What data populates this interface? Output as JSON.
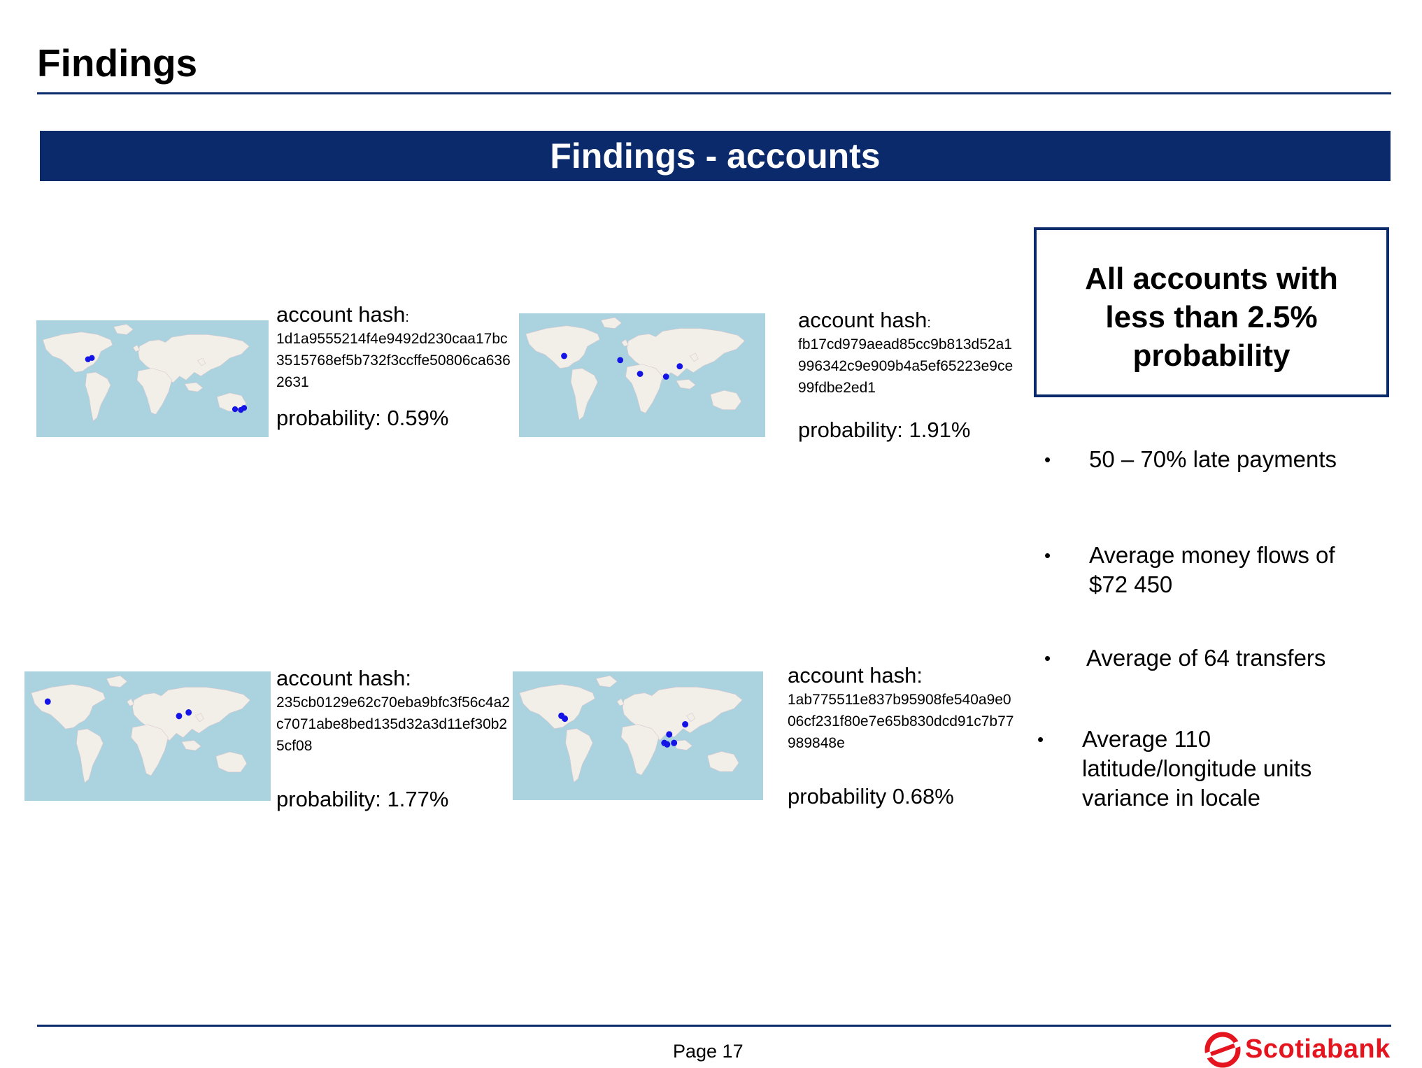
{
  "page": {
    "title": "Findings",
    "banner": "Findings - accounts",
    "page_number": "Page 17",
    "brand": "Scotiabank"
  },
  "accounts": [
    {
      "label": "account hash",
      "colon": ":",
      "hash": "1d1a9555214f4e9492d230caa17bc3515768ef5b732f3ccffe50806ca6362631",
      "probability": "probability: 0.59%"
    },
    {
      "label": "account hash",
      "colon": ":",
      "hash": "fb17cd979aead85cc9b813d52a1996342c9e909b4a5ef65223e9ce99fdbe2ed1",
      "probability": "probability: 1.91%"
    },
    {
      "label": "account hash:",
      "colon": "",
      "hash": "235cb0129e62c70eba9bfc3f56c4a2c7071abe8bed135d32a3d11ef30b25cf08",
      "probability": "probability: 1.77%"
    },
    {
      "label": "account hash:",
      "colon": "",
      "hash": "1ab775511e837b95908fe540a9e006cf231f80e7e65b830dcd91c7b77989848e",
      "probability": "probability 0.68%"
    }
  ],
  "summary": {
    "box_title": "All accounts with less than 2.5% probability",
    "box_lines": [
      "All accounts with",
      "less than 2.5%",
      "probability"
    ],
    "bullets": [
      {
        "marker": "•",
        "lines": [
          "50 – 70% late payments"
        ]
      },
      {
        "marker": "•",
        "lines": [
          "Average money flows of",
          "$72 450"
        ]
      },
      {
        "marker": "•",
        "lines": [
          "Average of 64 transfers"
        ]
      },
      {
        "marker": "•",
        "lines": [
          "Average 110",
          "latitude/longitude units",
          "variance in locale"
        ]
      }
    ]
  },
  "colors": {
    "navy": "#0b2a6b",
    "ocean": "#aad3df",
    "land": "#f2efe9",
    "dot": "#1414e6",
    "brand_red": "#e4151f"
  },
  "icons": {
    "map": "world-map-icon",
    "marker": "location-dot-icon",
    "logo": "scotiabank-s-icon"
  }
}
